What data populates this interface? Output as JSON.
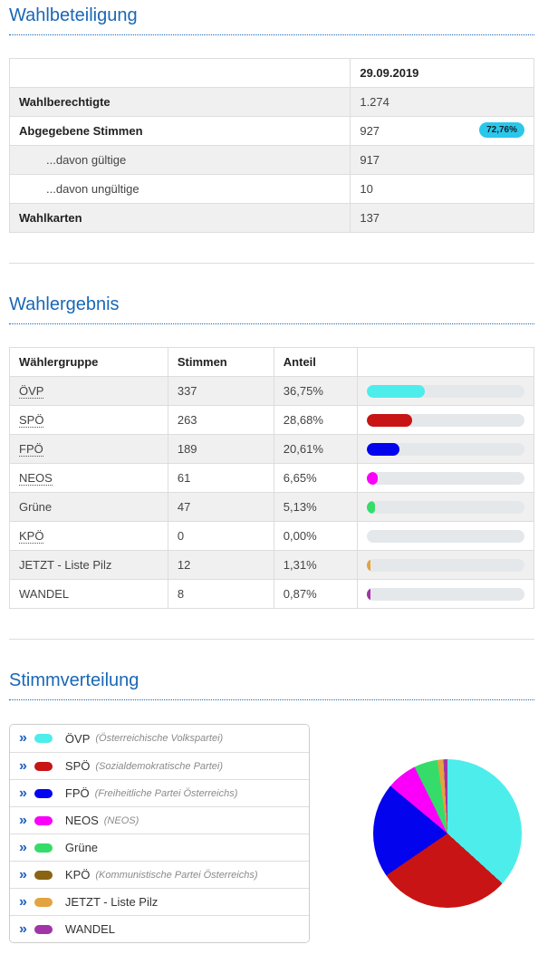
{
  "accent_color": "#1a67b6",
  "turnout": {
    "title": "Wahlbeteiligung",
    "date_header": "29.09.2019",
    "badge_color": "#2bc7eb",
    "rows": [
      {
        "label": "Wahlberechtigte",
        "value": "1.274"
      },
      {
        "label": "Abgegebene Stimmen",
        "value": "927",
        "badge": "72,76%"
      },
      {
        "label": "...davon gültige",
        "value": "917"
      },
      {
        "label": "...davon ungültige",
        "value": "10"
      },
      {
        "label": "Wahlkarten",
        "value": "137"
      }
    ]
  },
  "results": {
    "title": "Wahlergebnis",
    "headers": {
      "party": "Wählergruppe",
      "votes": "Stimmen",
      "share": "Anteil",
      "bar": ""
    },
    "rows": [
      {
        "party": "ÖVP",
        "votes": "337",
        "share": "36,75%",
        "abbr": true
      },
      {
        "party": "SPÖ",
        "votes": "263",
        "share": "28,68%",
        "abbr": true
      },
      {
        "party": "FPÖ",
        "votes": "189",
        "share": "20,61%",
        "abbr": true
      },
      {
        "party": "NEOS",
        "votes": "61",
        "share": "6,65%",
        "abbr": true
      },
      {
        "party": "Grüne",
        "votes": "47",
        "share": "5,13%",
        "abbr": false
      },
      {
        "party": "KPÖ",
        "votes": "0",
        "share": "0,00%",
        "abbr": true
      },
      {
        "party": "JETZT - Liste Pilz",
        "votes": "12",
        "share": "1,31%",
        "abbr": false
      },
      {
        "party": "WANDEL",
        "votes": "8",
        "share": "0,87%",
        "abbr": false
      }
    ]
  },
  "distribution": {
    "title": "Stimmverteilung",
    "legend": [
      {
        "party": "ÖVP",
        "full_name": "(Österreichische Volkspartei)",
        "color": "#4dedec"
      },
      {
        "party": "SPÖ",
        "full_name": "(Sozialdemokratische Partei)",
        "color": "#c81414"
      },
      {
        "party": "FPÖ",
        "full_name": "(Freiheitliche Partei Österreichs)",
        "color": "#0303ee"
      },
      {
        "party": "NEOS",
        "full_name": "(NEOS)",
        "color": "#fa00fa"
      },
      {
        "party": "Grüne",
        "full_name": "",
        "color": "#36dc69"
      },
      {
        "party": "KPÖ",
        "full_name": "(Kommunistische Partei Österreichs)",
        "color": "#8a6413"
      },
      {
        "party": "JETZT - Liste Pilz",
        "full_name": "",
        "color": "#e3a33f"
      },
      {
        "party": "WANDEL",
        "full_name": "",
        "color": "#a134a6"
      }
    ]
  },
  "chart_data": [
    {
      "type": "bar",
      "title": "Wahlergebnis Anteil",
      "categories": [
        "ÖVP",
        "SPÖ",
        "FPÖ",
        "NEOS",
        "Grüne",
        "KPÖ",
        "JETZT - Liste Pilz",
        "WANDEL"
      ],
      "values": [
        36.75,
        28.68,
        20.61,
        6.65,
        5.13,
        0.0,
        1.31,
        0.87
      ],
      "votes": [
        337,
        263,
        189,
        61,
        47,
        0,
        12,
        8
      ],
      "colors": [
        "#4dedec",
        "#c81414",
        "#0303ee",
        "#fa00fa",
        "#36dc69",
        "#8a6413",
        "#e3a33f",
        "#a134a6"
      ],
      "xlabel": "",
      "ylabel": "Anteil %",
      "xlim": [
        0,
        100
      ],
      "track_color": "#e5e8eb",
      "legend_position": "none",
      "grid": false
    },
    {
      "type": "pie",
      "title": "Stimmverteilung",
      "labels": [
        "ÖVP",
        "SPÖ",
        "FPÖ",
        "NEOS",
        "Grüne",
        "KPÖ",
        "JETZT - Liste Pilz",
        "WANDEL"
      ],
      "values": [
        36.75,
        28.68,
        20.61,
        6.65,
        5.13,
        0.0,
        1.31,
        0.87
      ],
      "colors": [
        "#4dedec",
        "#c81414",
        "#0303ee",
        "#fa00fa",
        "#36dc69",
        "#8a6413",
        "#e3a33f",
        "#a134a6"
      ],
      "start_angle_deg": 0,
      "direction": "clockwise",
      "legend_position": "left"
    }
  ]
}
